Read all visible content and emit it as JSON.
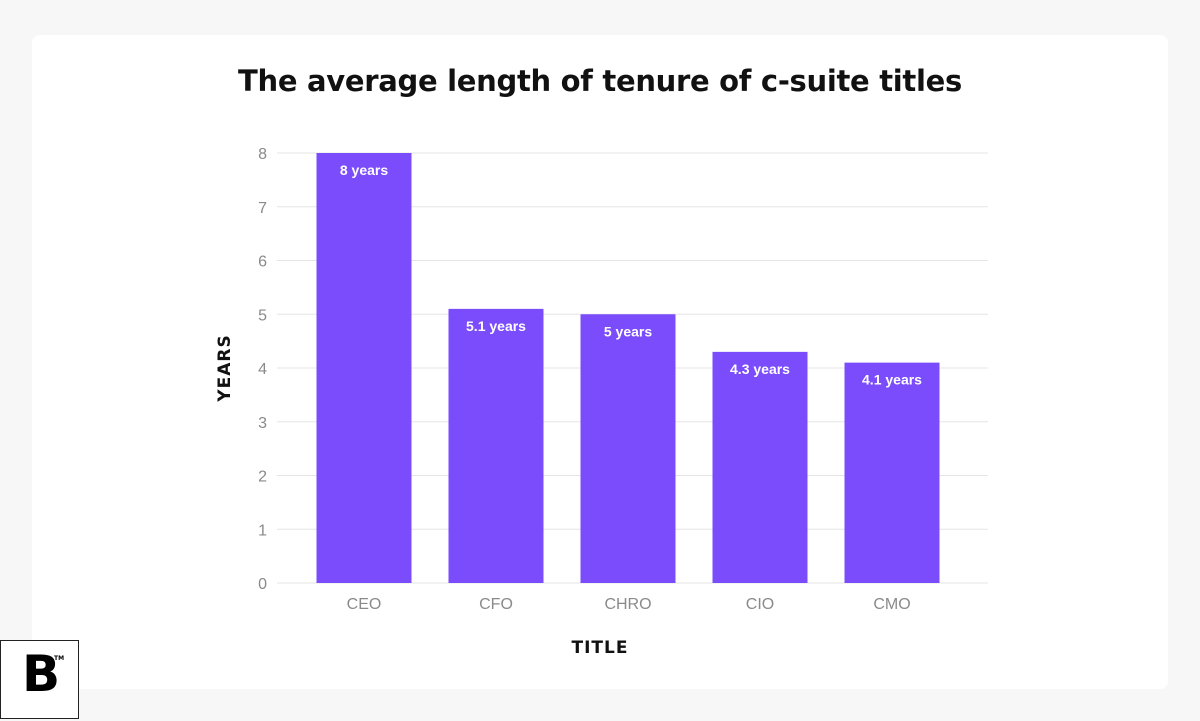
{
  "chart_data": {
    "type": "bar",
    "title": "The average length of tenure of c-suite titles",
    "xlabel": "TITLE",
    "ylabel": "YEARS",
    "categories": [
      "CEO",
      "CFO",
      "CHRO",
      "CIO",
      "CMO"
    ],
    "values": [
      8,
      5.1,
      5,
      4.3,
      4.1
    ],
    "data_labels": [
      "8 years",
      "5.1 years",
      "5 years",
      "4.3 years",
      "4.1 years"
    ],
    "ylim": [
      0,
      8
    ],
    "yticks": [
      0,
      1,
      2,
      3,
      4,
      5,
      6,
      7,
      8
    ],
    "grid": true,
    "legend": "none"
  },
  "colors": {
    "bar": "#7b4cfc",
    "grid": "#e6e6e6",
    "tick_label": "#8a8a8a",
    "bar_label": "#ffffff",
    "axis_title": "#111111"
  },
  "logo": {
    "letter": "B",
    "trademark": "TM"
  }
}
